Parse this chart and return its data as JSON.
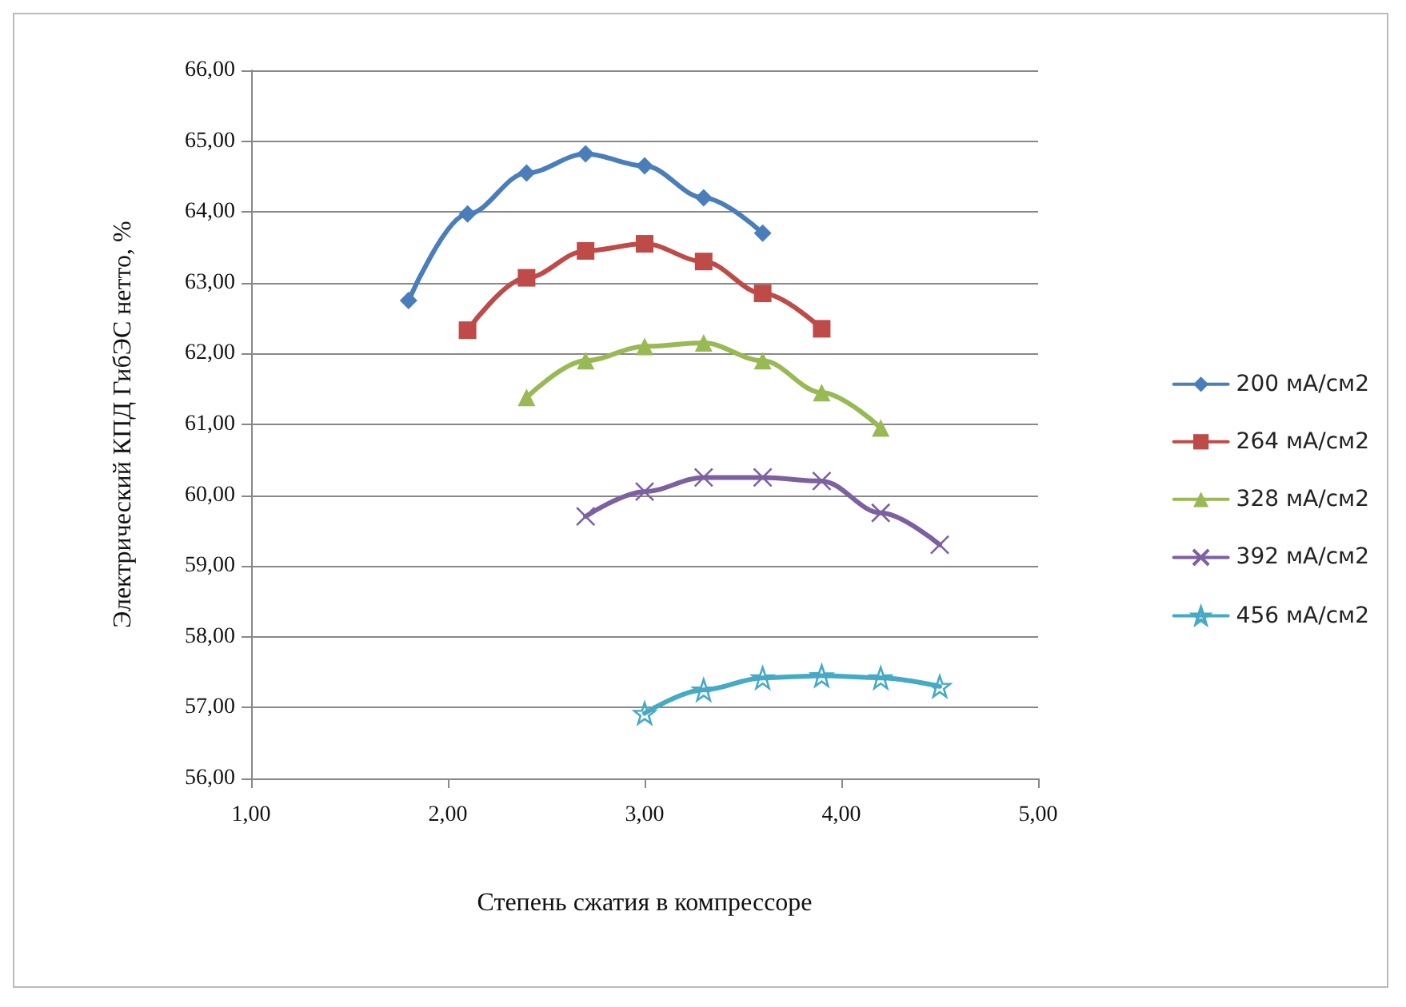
{
  "chart_data": {
    "type": "line",
    "xlabel": "Степень сжатия в компрессоре",
    "ylabel": "Электрический КПД ГибЭС нетто, %",
    "xlim": [
      1,
      5
    ],
    "xticks": [
      {
        "value": 1,
        "label": "1,00"
      },
      {
        "value": 2,
        "label": "2,00"
      },
      {
        "value": 3,
        "label": "3,00"
      },
      {
        "value": 4,
        "label": "4,00"
      },
      {
        "value": 5,
        "label": "5,00"
      }
    ],
    "ylim": [
      56,
      66
    ],
    "yticks": [
      {
        "value": 56,
        "label": "56,00"
      },
      {
        "value": 57,
        "label": "57,00"
      },
      {
        "value": 58,
        "label": "58,00"
      },
      {
        "value": 59,
        "label": "59,00"
      },
      {
        "value": 60,
        "label": "60,00"
      },
      {
        "value": 61,
        "label": "61,00"
      },
      {
        "value": 62,
        "label": "62,00"
      },
      {
        "value": 63,
        "label": "63,00"
      },
      {
        "value": 64,
        "label": "64,00"
      },
      {
        "value": 65,
        "label": "65,00"
      },
      {
        "value": 66,
        "label": "66,00"
      }
    ],
    "grid": "y",
    "legend": "right",
    "line_style": "solid",
    "series": [
      {
        "name": "200 мА/см2",
        "color": "#4a7ebb",
        "marker": "diamond",
        "x": [
          1.8,
          2.1,
          2.4,
          2.7,
          3.0,
          3.3,
          3.6
        ],
        "values": [
          62.75,
          63.97,
          64.55,
          64.82,
          64.65,
          64.2,
          63.7
        ]
      },
      {
        "name": "264 мА/см2",
        "color": "#be4b48",
        "marker": "square",
        "x": [
          2.1,
          2.4,
          2.7,
          3.0,
          3.3,
          3.6,
          3.9
        ],
        "values": [
          62.33,
          63.07,
          63.45,
          63.55,
          63.3,
          62.85,
          62.35
        ]
      },
      {
        "name": "328 мА/см2",
        "color": "#98b954",
        "marker": "triangle",
        "x": [
          2.4,
          2.7,
          3.0,
          3.3,
          3.6,
          3.9,
          4.2
        ],
        "values": [
          61.38,
          61.9,
          62.1,
          62.15,
          61.9,
          61.45,
          60.95
        ]
      },
      {
        "name": "392 мА/см2",
        "color": "#7d60a0",
        "marker": "cross",
        "x": [
          2.7,
          3.0,
          3.3,
          3.6,
          3.9,
          4.2,
          4.5
        ],
        "values": [
          59.7,
          60.05,
          60.25,
          60.25,
          60.2,
          59.75,
          59.3
        ]
      },
      {
        "name": "456 мА/см2",
        "color": "#46aac5",
        "marker": "star",
        "x": [
          3.0,
          3.3,
          3.6,
          3.9,
          4.2,
          4.5
        ],
        "values": [
          56.92,
          57.25,
          57.42,
          57.45,
          57.42,
          57.3
        ]
      }
    ]
  }
}
